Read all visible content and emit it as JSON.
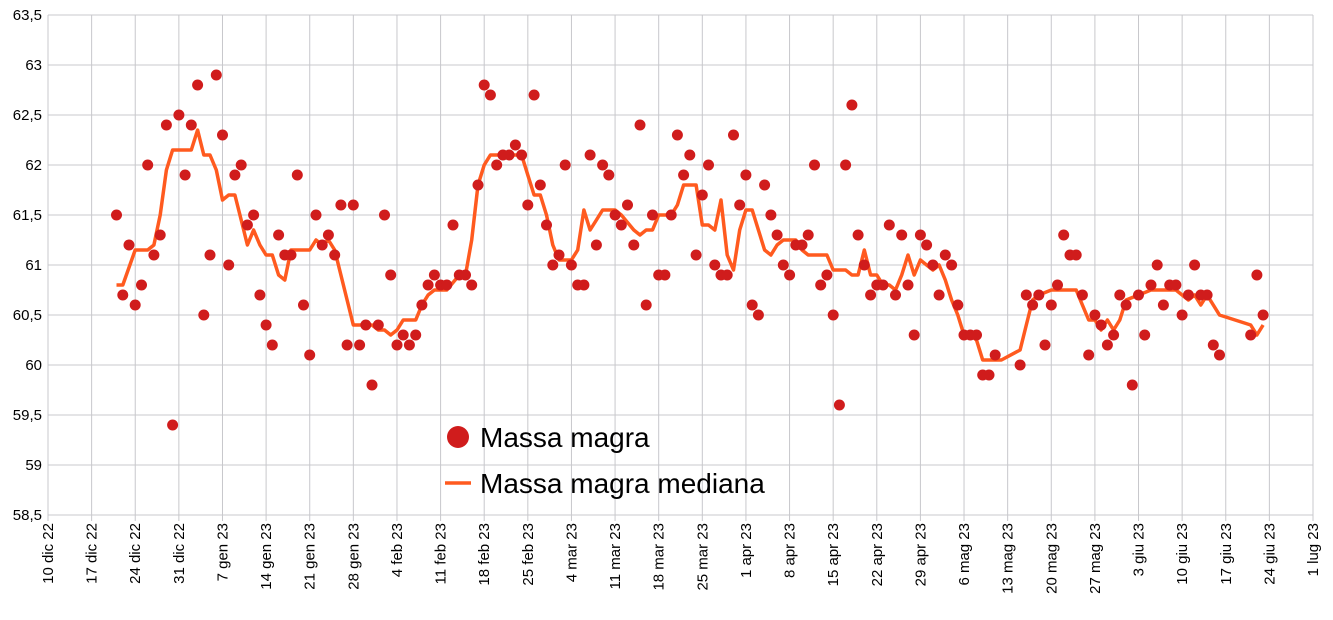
{
  "chart_data": {
    "type": "scatter",
    "title": "",
    "xlabel": "",
    "ylabel": "",
    "x_unit": "days since 10 dic 22",
    "xlim": [
      0,
      203
    ],
    "ylim": [
      58.5,
      63.5
    ],
    "grid": true,
    "y_ticks": [
      "58,5",
      "59",
      "59,5",
      "60",
      "60,5",
      "61",
      "61,5",
      "62",
      "62,5",
      "63",
      "63,5"
    ],
    "y_tick_values": [
      58.5,
      59,
      59.5,
      60,
      60.5,
      61,
      61.5,
      62,
      62.5,
      63,
      63.5
    ],
    "x_ticks": [
      "10 dic 22",
      "17 dic 22",
      "24 dic 22",
      "31 dic 22",
      "7 gen 23",
      "14 gen 23",
      "21 gen 23",
      "28 gen 23",
      "4 feb 23",
      "11 feb 23",
      "18 feb 23",
      "25 feb 23",
      "4 mar 23",
      "11 mar 23",
      "18 mar 23",
      "25 mar 23",
      "1 apr 23",
      "8 apr 23",
      "15 apr 23",
      "22 apr 23",
      "29 apr 23",
      "6 mag 23",
      "13 mag 23",
      "20 mag 23",
      "27 mag 23",
      "3 giu 23",
      "10 giu 23",
      "17 giu 23",
      "24 giu 23",
      "1 lug 23"
    ],
    "x_tick_step_days": 7,
    "legend": {
      "position": "bottom-center-inside",
      "entries": [
        "Massa magra",
        "Massa magra mediana"
      ]
    },
    "colors": {
      "points": "#d01c1c",
      "line": "#ff5a1f",
      "grid": "#c8c8cc"
    },
    "series": [
      {
        "name": "Massa magra",
        "type": "scatter",
        "segments": [
          {
            "start_day": 11,
            "values": [
              61.5,
              60.7,
              61.2,
              60.6,
              60.8,
              62.0,
              61.1,
              61.3,
              62.4,
              59.4,
              62.5,
              61.9,
              62.4,
              62.8,
              60.5,
              61.1,
              62.9,
              62.3,
              61.0,
              61.9,
              62.0,
              61.4,
              61.5,
              60.7,
              60.4,
              60.2,
              61.3,
              61.1,
              61.1,
              61.9,
              60.6,
              60.1,
              61.5,
              61.2,
              61.3,
              61.1,
              61.6,
              60.2,
              61.6,
              60.2,
              60.4,
              59.8,
              60.4,
              61.5,
              60.9,
              60.2,
              60.3,
              60.2,
              60.3,
              60.6,
              60.8,
              60.9,
              60.8,
              60.8,
              61.4,
              60.9,
              60.9,
              60.8,
              61.8,
              62.8,
              62.7,
              62.0,
              62.1,
              62.1,
              62.2,
              62.1,
              61.6,
              62.7,
              61.8,
              61.4,
              61.0,
              61.1,
              62.0,
              61.0,
              60.8,
              60.8,
              62.1,
              61.2,
              62.0,
              61.9,
              61.5,
              61.4,
              61.6,
              61.2,
              62.4,
              60.6,
              61.5,
              60.9,
              60.9,
              61.5,
              62.3,
              61.9,
              62.1,
              61.1,
              61.7,
              62.0,
              61.0,
              60.9,
              60.9,
              62.3,
              61.6,
              61.9,
              60.6,
              60.5,
              61.8,
              61.5,
              61.3,
              61.0,
              60.9,
              61.2,
              61.2,
              61.3,
              62.0,
              60.8,
              60.9,
              60.5,
              59.6,
              62.0,
              62.6,
              61.3,
              61.0,
              60.7,
              60.8,
              60.8,
              61.4,
              60.7,
              61.3,
              60.8,
              60.3,
              61.3,
              61.2,
              61.0,
              60.7,
              61.1,
              61.0,
              60.6,
              60.3,
              60.3,
              60.3,
              59.9,
              59.9,
              60.1
            ]
          },
          {
            "start_day": 156,
            "values": [
              60.0,
              60.7,
              60.6,
              60.7,
              60.2,
              60.6,
              60.8,
              61.3,
              61.1,
              61.1,
              60.7,
              60.1,
              60.5,
              60.4,
              60.2,
              60.3,
              60.7,
              60.6,
              59.8,
              60.7,
              60.3,
              60.8,
              61.0,
              60.6,
              60.8,
              60.8,
              60.5,
              60.7,
              61.0,
              60.7,
              60.7,
              60.2,
              60.1
            ]
          },
          {
            "start_day": 193,
            "values": [
              60.3,
              60.9,
              60.5
            ]
          }
        ]
      },
      {
        "name": "Massa magra mediana",
        "type": "line",
        "x": [
          11,
          12,
          14,
          16,
          17,
          18,
          19,
          20,
          23,
          24,
          25,
          26,
          27,
          28,
          29,
          30,
          31,
          32,
          33,
          34,
          35,
          36,
          37,
          38,
          39,
          41,
          42,
          43,
          44,
          45,
          46,
          47,
          48,
          49,
          51,
          52,
          53,
          54,
          55,
          56,
          57,
          59,
          60,
          61,
          62,
          64,
          66,
          67,
          68,
          69,
          70,
          71,
          76,
          77,
          78,
          79,
          80,
          81,
          82,
          84,
          85,
          86,
          87,
          88,
          89,
          91,
          92,
          94,
          95,
          96,
          97,
          98,
          100,
          101,
          102,
          104,
          105,
          106,
          107,
          108,
          109,
          110,
          111,
          112,
          113,
          114,
          115,
          116,
          117,
          118,
          120,
          121,
          122,
          124,
          125,
          126,
          127,
          128,
          129,
          130,
          131,
          132,
          133,
          134,
          135,
          136,
          137,
          138,
          139,
          140,
          141,
          142,
          143,
          144,
          145,
          146,
          147,
          148,
          149,
          150,
          153,
          156,
          157,
          158,
          159,
          161,
          165,
          166,
          167,
          168,
          169,
          170,
          171,
          172,
          173,
          175,
          177,
          181,
          182,
          183,
          184,
          185,
          186,
          187,
          188,
          193,
          194,
          195
        ],
        "y": [
          60.8,
          60.8,
          61.15,
          61.15,
          61.2,
          61.5,
          61.95,
          62.15,
          62.15,
          62.35,
          62.1,
          62.1,
          61.95,
          61.65,
          61.7,
          61.7,
          61.45,
          61.2,
          61.35,
          61.2,
          61.1,
          61.1,
          60.9,
          60.85,
          61.15,
          61.15,
          61.15,
          61.25,
          61.2,
          61.25,
          61.15,
          60.9,
          60.65,
          60.4,
          60.4,
          60.4,
          60.35,
          60.35,
          60.3,
          60.35,
          60.45,
          60.45,
          60.6,
          60.7,
          60.75,
          60.75,
          60.9,
          60.9,
          61.25,
          61.8,
          62.0,
          62.1,
          62.1,
          61.9,
          61.7,
          61.7,
          61.5,
          61.2,
          61.05,
          61.05,
          61.15,
          61.55,
          61.35,
          61.45,
          61.55,
          61.55,
          61.5,
          61.35,
          61.3,
          61.35,
          61.35,
          61.5,
          61.5,
          61.6,
          61.8,
          61.8,
          61.4,
          61.4,
          61.35,
          61.65,
          61.1,
          60.95,
          61.35,
          61.55,
          61.55,
          61.35,
          61.15,
          61.1,
          61.2,
          61.25,
          61.25,
          61.15,
          61.1,
          61.1,
          61.1,
          60.95,
          60.95,
          60.95,
          60.9,
          60.9,
          61.15,
          60.9,
          60.9,
          60.8,
          60.8,
          60.75,
          60.9,
          61.1,
          60.9,
          61.05,
          61.0,
          60.95,
          61.0,
          60.85,
          60.65,
          60.5,
          60.3,
          60.3,
          60.25,
          60.05,
          60.05,
          60.15,
          60.4,
          60.65,
          60.7,
          60.75,
          60.75,
          60.6,
          60.45,
          60.45,
          60.35,
          60.45,
          60.35,
          60.45,
          60.65,
          60.7,
          60.75,
          60.75,
          60.7,
          60.65,
          60.7,
          60.6,
          60.7,
          60.6,
          60.5,
          60.4,
          60.3,
          60.4
        ]
      }
    ]
  }
}
